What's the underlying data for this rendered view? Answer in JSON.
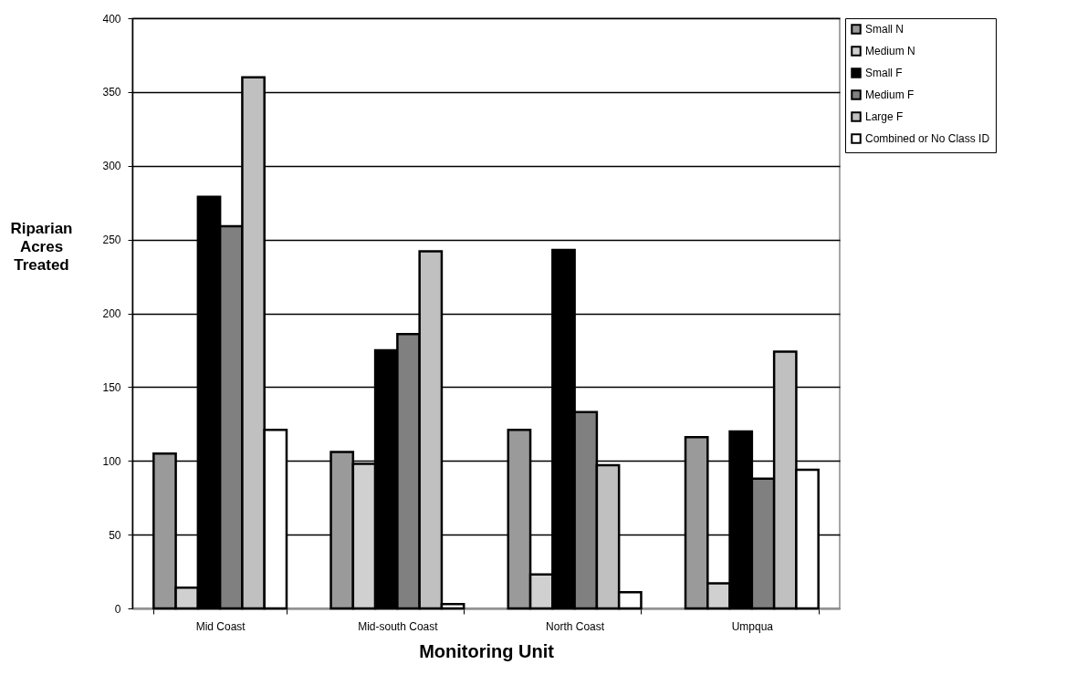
{
  "chart_data": {
    "type": "bar",
    "xlabel": "Monitoring Unit",
    "ylabel": "Riparian Acres Treated",
    "categories": [
      "Mid Coast",
      "Mid-south Coast",
      "North Coast",
      "Umpqua"
    ],
    "series": [
      {
        "name": "Small N",
        "color": "#9a9a9a",
        "values": [
          105,
          106,
          121,
          116
        ]
      },
      {
        "name": "Medium N",
        "color": "#d0d0d0",
        "values": [
          14,
          98,
          23,
          17
        ]
      },
      {
        "name": "Small F",
        "color": "#000000",
        "values": [
          279,
          175,
          243,
          120
        ]
      },
      {
        "name": "Medium F",
        "color": "#808080",
        "values": [
          259,
          186,
          133,
          88
        ]
      },
      {
        "name": "Large F",
        "color": "#c0c0c0",
        "values": [
          360,
          242,
          97,
          174
        ]
      },
      {
        "name": "Combined or No Class ID",
        "color": "#ffffff",
        "values": [
          121,
          3,
          11,
          94
        ]
      }
    ],
    "ylim": [
      0,
      400
    ],
    "yticks": [
      0,
      50,
      100,
      150,
      200,
      250,
      300,
      350,
      400
    ],
    "grid": "y",
    "legend": "right"
  }
}
